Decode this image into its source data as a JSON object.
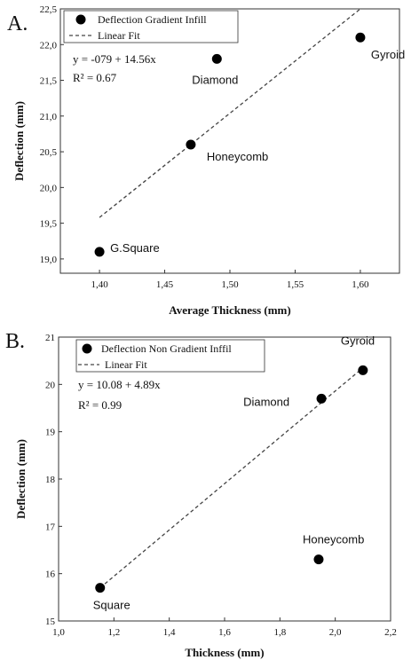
{
  "chart_data": [
    {
      "type": "scatter",
      "panel_label": "A.",
      "xlabel": "Average Thickness (mm)",
      "ylabel": "Deflection (mm)",
      "xlim": [
        1.37,
        1.63
      ],
      "ylim": [
        18.8,
        22.5
      ],
      "x_ticks": [
        1.4,
        1.45,
        1.5,
        1.55,
        1.6
      ],
      "x_tick_labels": [
        "1,40",
        "1,45",
        "1,50",
        "1,55",
        "1,60"
      ],
      "y_ticks": [
        19.0,
        19.5,
        20.0,
        20.5,
        21.0,
        21.5,
        22.0,
        22.5
      ],
      "y_tick_labels": [
        "19,0",
        "19,5",
        "20,0",
        "20,5",
        "21,0",
        "21,5",
        "22,0",
        "22,5"
      ],
      "grid": false,
      "legend_position": "top-left",
      "series": [
        {
          "name": "Deflection Gradient Infill",
          "x": [
            1.4,
            1.47,
            1.49,
            1.6
          ],
          "y": [
            19.1,
            20.6,
            21.8,
            22.1
          ],
          "labels": [
            "G.Square",
            "Honeycomb",
            "Diamond",
            "Gyroid"
          ]
        }
      ],
      "fit": {
        "name": "Linear Fit",
        "x": [
          1.4,
          1.6
        ],
        "y": [
          19.58,
          22.5
        ]
      },
      "equation": "y = -079 + 14.56x",
      "r2_label": "R² = 0.67"
    },
    {
      "type": "scatter",
      "panel_label": "B.",
      "xlabel": "Thickness (mm)",
      "ylabel": "Deflection (mm)",
      "xlim": [
        1.0,
        2.2
      ],
      "ylim": [
        15,
        21
      ],
      "x_ticks": [
        1.0,
        1.2,
        1.4,
        1.6,
        1.8,
        2.0,
        2.2
      ],
      "x_tick_labels": [
        "1,0",
        "1,2",
        "1,4",
        "1,6",
        "1,8",
        "2,0",
        "2,2"
      ],
      "y_ticks": [
        15,
        16,
        17,
        18,
        19,
        20,
        21
      ],
      "y_tick_labels": [
        "15",
        "16",
        "17",
        "18",
        "19",
        "20",
        "21"
      ],
      "grid": false,
      "legend_position": "top-left",
      "series": [
        {
          "name": "Deflection Non Gradient Inffil",
          "x": [
            1.15,
            1.94,
            1.95,
            2.1
          ],
          "y": [
            15.7,
            16.3,
            19.7,
            20.3
          ],
          "labels": [
            "Square",
            "Honeycomb",
            "Diamond",
            "Gyroid"
          ]
        }
      ],
      "fit": {
        "name": "Linear Fit",
        "x": [
          1.15,
          2.1
        ],
        "y": [
          15.7,
          20.35
        ]
      },
      "equation": "y = 10.08 + 4.89x",
      "r2_label": "R² = 0.99"
    }
  ],
  "colors": {
    "axis": "#333333",
    "marker": "#000000",
    "fit_line": "#444444"
  }
}
